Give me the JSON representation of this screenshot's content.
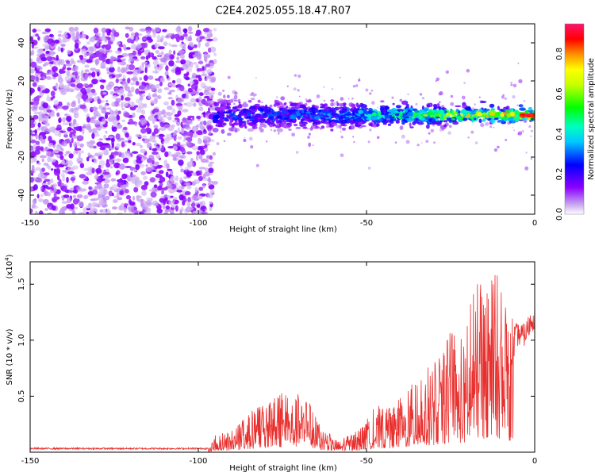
{
  "title": "C2E4.2025.055.18.47.R07",
  "chart_data": [
    {
      "type": "heatmap",
      "xlabel": "Height of straight line (km)",
      "ylabel": "Frequency (Hz)",
      "xlim": [
        -150,
        0
      ],
      "ylim": [
        -50,
        50
      ],
      "x_ticks": [
        "-150",
        "-100",
        "-50",
        "0"
      ],
      "y_ticks": [
        "-40",
        "-20",
        "0",
        "20",
        "40"
      ],
      "colorbar": {
        "label": "Normalized spectral amplitude",
        "range": [
          0,
          0.95
        ],
        "ticks": [
          "0.0",
          "0.2",
          "0.4",
          "0.6",
          "0.8"
        ],
        "colors": [
          "#ffffff",
          "#8b00ff",
          "#0000ff",
          "#00ffff",
          "#00ff00",
          "#ffff00",
          "#ff7f00",
          "#ff0000",
          "#ff1493"
        ]
      },
      "regions": [
        {
          "name": "noise",
          "x_range": [
            -150,
            -95
          ],
          "y_range": [
            -50,
            48
          ],
          "amplitude": 0.05,
          "color": "#8b00ff"
        },
        {
          "name": "signal-band",
          "x_range": [
            -95,
            0
          ],
          "center_freq": 2,
          "band_width_hz": 8,
          "amplitude_start": 0.25,
          "amplitude_end": 0.9
        }
      ]
    },
    {
      "type": "line",
      "xlabel": "Height of straight line (km)",
      "ylabel": "SNR (10 * v/v)",
      "scale_label": "(x10",
      "scale_exponent": "4",
      "xlim": [
        -150,
        0
      ],
      "ylim": [
        0,
        1.7
      ],
      "x_ticks": [
        "-150",
        "-100",
        "-50",
        "0"
      ],
      "y_ticks": [
        "0.5",
        "1.0",
        "1.5"
      ],
      "line_color": "#e8302e",
      "envelope": [
        {
          "x": -150,
          "y": 0.03
        },
        {
          "x": -97,
          "y": 0.03
        },
        {
          "x": -95,
          "y": 0.15
        },
        {
          "x": -90,
          "y": 0.2
        },
        {
          "x": -85,
          "y": 0.35
        },
        {
          "x": -75,
          "y": 0.55
        },
        {
          "x": -70,
          "y": 0.6
        },
        {
          "x": -67,
          "y": 0.45
        },
        {
          "x": -63,
          "y": 0.2
        },
        {
          "x": -58,
          "y": 0.12
        },
        {
          "x": -52,
          "y": 0.2
        },
        {
          "x": -48,
          "y": 0.4
        },
        {
          "x": -42,
          "y": 0.45
        },
        {
          "x": -38,
          "y": 0.55
        },
        {
          "x": -34,
          "y": 0.7
        },
        {
          "x": -28,
          "y": 0.85
        },
        {
          "x": -25,
          "y": 1.1
        },
        {
          "x": -21,
          "y": 1.0
        },
        {
          "x": -18,
          "y": 1.55
        },
        {
          "x": -15,
          "y": 1.5
        },
        {
          "x": -12,
          "y": 1.65
        },
        {
          "x": -9,
          "y": 1.4
        },
        {
          "x": -6,
          "y": 1.15
        },
        {
          "x": -3,
          "y": 1.15
        },
        {
          "x": 0,
          "y": 1.35
        }
      ]
    }
  ]
}
